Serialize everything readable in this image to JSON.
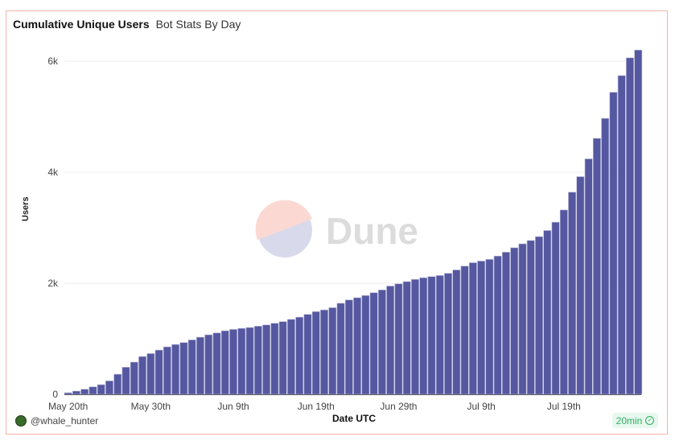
{
  "header": {
    "title": "Cumulative Unique Users",
    "subtitle": "Bot Stats By Day"
  },
  "footer": {
    "author": "@whale_hunter",
    "refresh": "20min"
  },
  "colors": {
    "bar": "#5558a0",
    "border": "#f6b3ab",
    "badge": "#2fae5e"
  },
  "watermark": "Dune",
  "chart_data": {
    "type": "bar",
    "xlabel": "Date UTC",
    "ylabel": "Users",
    "ylim": [
      0,
      6300
    ],
    "yticks": [
      {
        "v": 0,
        "label": "0"
      },
      {
        "v": 2000,
        "label": "2k"
      },
      {
        "v": 4000,
        "label": "4k"
      },
      {
        "v": 6000,
        "label": "6k"
      }
    ],
    "xticks": [
      {
        "i": 0,
        "label": "May 20th"
      },
      {
        "i": 10,
        "label": "May 30th"
      },
      {
        "i": 20,
        "label": "Jun 9th"
      },
      {
        "i": 30,
        "label": "Jun 19th"
      },
      {
        "i": 40,
        "label": "Jun 29th"
      },
      {
        "i": 50,
        "label": "Jul 9th"
      },
      {
        "i": 60,
        "label": "Jul 19th"
      }
    ],
    "grid": true,
    "x": [
      "May 20",
      "May 21",
      "May 22",
      "May 23",
      "May 24",
      "May 25",
      "May 26",
      "May 27",
      "May 28",
      "May 29",
      "May 30",
      "May 31",
      "Jun 1",
      "Jun 2",
      "Jun 3",
      "Jun 4",
      "Jun 5",
      "Jun 6",
      "Jun 7",
      "Jun 8",
      "Jun 9",
      "Jun 10",
      "Jun 11",
      "Jun 12",
      "Jun 13",
      "Jun 14",
      "Jun 15",
      "Jun 16",
      "Jun 17",
      "Jun 18",
      "Jun 19",
      "Jun 20",
      "Jun 21",
      "Jun 22",
      "Jun 23",
      "Jun 24",
      "Jun 25",
      "Jun 26",
      "Jun 27",
      "Jun 28",
      "Jun 29",
      "Jun 30",
      "Jul 1",
      "Jul 2",
      "Jul 3",
      "Jul 4",
      "Jul 5",
      "Jul 6",
      "Jul 7",
      "Jul 8",
      "Jul 9",
      "Jul 10",
      "Jul 11",
      "Jul 12",
      "Jul 13",
      "Jul 14",
      "Jul 15",
      "Jul 16",
      "Jul 17",
      "Jul 18",
      "Jul 19",
      "Jul 20",
      "Jul 21",
      "Jul 22",
      "Jul 23",
      "Jul 24",
      "Jul 25",
      "Jul 26",
      "Jul 27",
      "Jul 28"
    ],
    "values": [
      29,
      58,
      92,
      135,
      174,
      242,
      362,
      488,
      580,
      681,
      734,
      797,
      855,
      898,
      932,
      980,
      1029,
      1072,
      1106,
      1145,
      1169,
      1188,
      1203,
      1227,
      1250,
      1280,
      1310,
      1350,
      1390,
      1440,
      1490,
      1520,
      1560,
      1640,
      1700,
      1740,
      1780,
      1830,
      1880,
      1950,
      1990,
      2030,
      2070,
      2100,
      2120,
      2140,
      2180,
      2240,
      2310,
      2370,
      2400,
      2430,
      2490,
      2560,
      2640,
      2710,
      2770,
      2840,
      2950,
      3100,
      3320,
      3640,
      3920,
      4240,
      4610,
      4970,
      5440,
      5740,
      6060,
      6200
    ]
  }
}
